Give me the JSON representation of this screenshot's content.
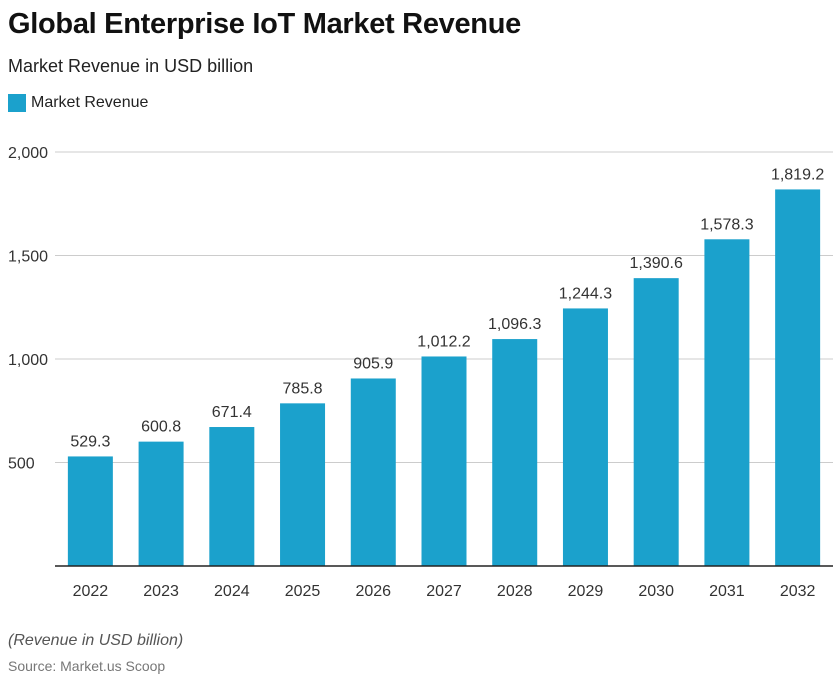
{
  "header": {
    "title": "Global Enterprise IoT Market Revenue",
    "subtitle": "Market Revenue in USD billion"
  },
  "footer": {
    "note": "(Revenue in USD billion)",
    "source": "Source: Market.us Scoop"
  },
  "colors": {
    "bar": "#1ba1cc",
    "grid": "#cccccc",
    "axis": "#222222",
    "text": "#333333"
  },
  "chart_data": {
    "type": "bar",
    "title": "Global Enterprise IoT Market Revenue",
    "subtitle": "Market Revenue in USD billion",
    "categories": [
      "2022",
      "2023",
      "2024",
      "2025",
      "2026",
      "2027",
      "2028",
      "2029",
      "2030",
      "2031",
      "2032"
    ],
    "series": [
      {
        "name": "Market Revenue",
        "values": [
          529.3,
          600.8,
          671.4,
          785.8,
          905.9,
          1012.2,
          1096.3,
          1244.3,
          1390.6,
          1578.3,
          1819.2
        ],
        "data_labels": [
          "529.3",
          "600.8",
          "671.4",
          "785.8",
          "905.9",
          "1,012.2",
          "1,096.3",
          "1,244.3",
          "1,390.6",
          "1,578.3",
          "1,819.2"
        ]
      }
    ],
    "y_ticks": [
      500,
      1000,
      1500,
      2000
    ],
    "y_tick_labels": [
      "500",
      "1,000",
      "1,500",
      "2,000"
    ],
    "ylim": [
      0,
      2000
    ],
    "grid": true,
    "legend": "top-left"
  }
}
